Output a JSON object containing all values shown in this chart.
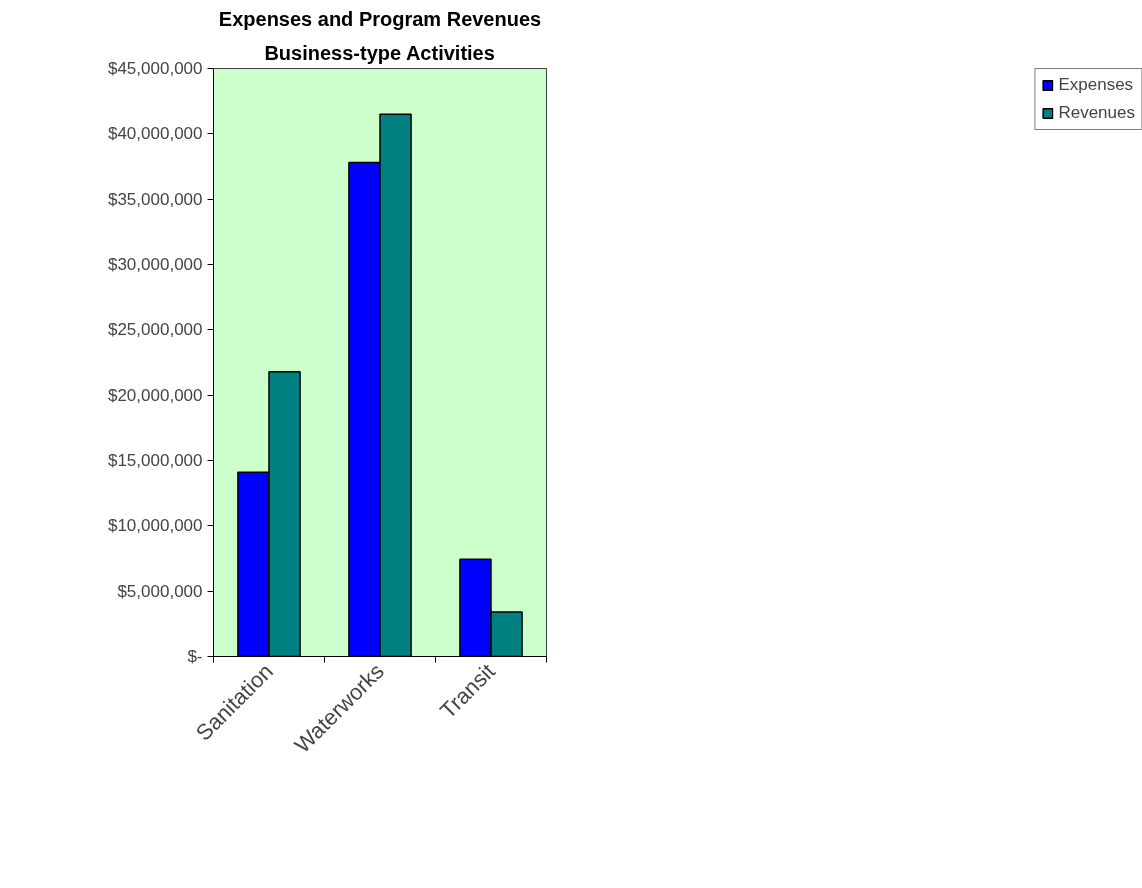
{
  "chart_data": {
    "type": "bar",
    "title": "Expenses and Program Revenues",
    "subtitle": "Business-type Activities",
    "categories": [
      "Sanitation",
      "Waterworks",
      "Transit"
    ],
    "series": [
      {
        "name": "Expenses",
        "color": "#0000ff",
        "values": [
          14100000,
          37800000,
          7450000
        ]
      },
      {
        "name": "Revenues",
        "color": "#008080",
        "values": [
          21800000,
          41500000,
          3400000
        ]
      }
    ],
    "ylim": [
      0,
      45000000
    ],
    "yticks": [
      {
        "value": 0,
        "label": "$-"
      },
      {
        "value": 5000000,
        "label": "$5,000,000"
      },
      {
        "value": 10000000,
        "label": "$10,000,000"
      },
      {
        "value": 15000000,
        "label": "$15,000,000"
      },
      {
        "value": 20000000,
        "label": "$20,000,000"
      },
      {
        "value": 25000000,
        "label": "$25,000,000"
      },
      {
        "value": 30000000,
        "label": "$30,000,000"
      },
      {
        "value": 35000000,
        "label": "$35,000,000"
      },
      {
        "value": 40000000,
        "label": "$40,000,000"
      },
      {
        "value": 45000000,
        "label": "$45,000,000"
      }
    ],
    "grid": false,
    "legend": "top right"
  }
}
